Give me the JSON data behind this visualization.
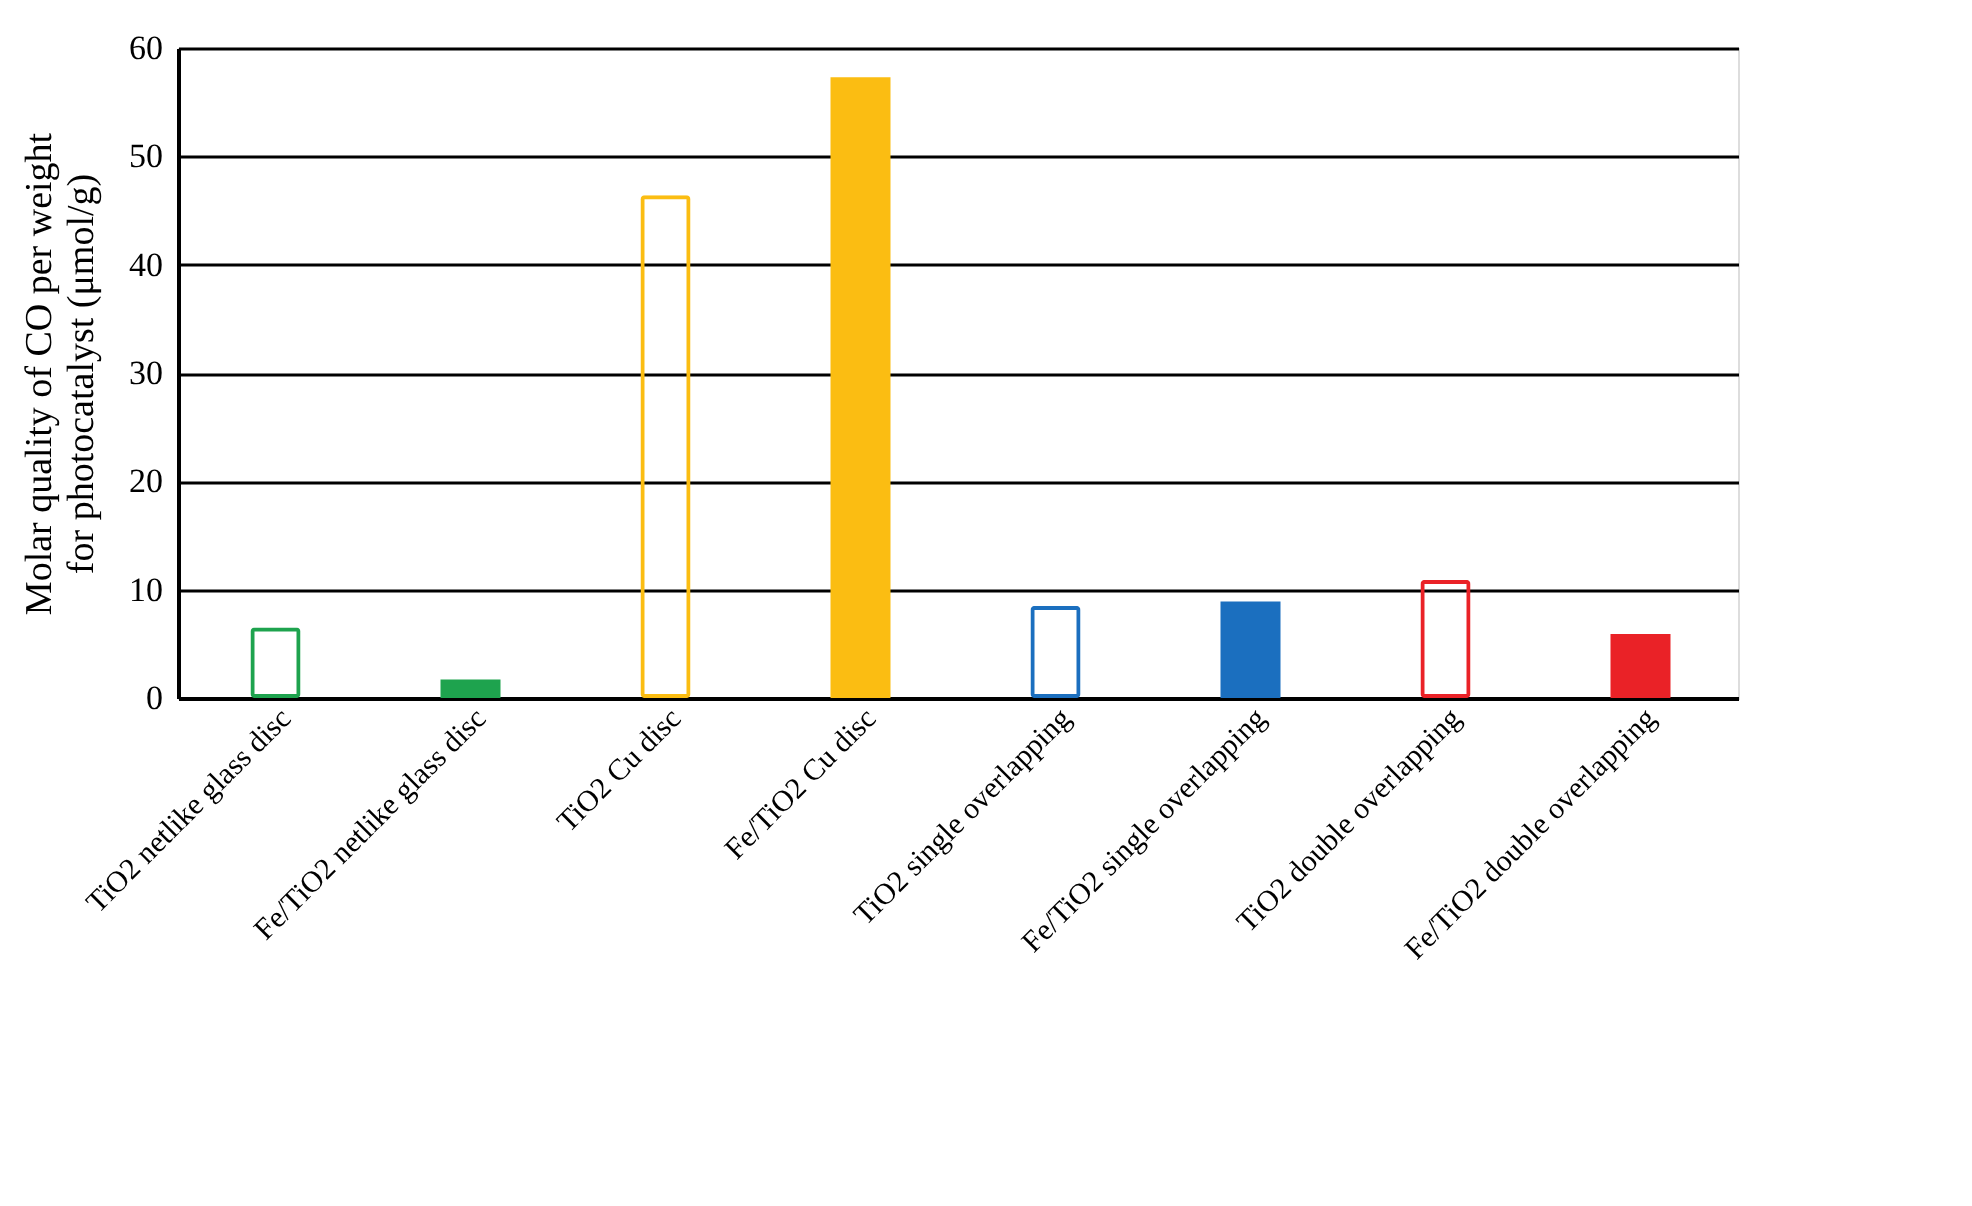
{
  "chart_data": {
    "type": "bar",
    "ylabel": "Molar quality of CO per weight\nfor photocatalyst  (μmol/g)",
    "categories": [
      "TiO2  netlike glass disc",
      "Fe/TiO2 netlike glass disc",
      "TiO2 Cu disc",
      "Fe/TiO2 Cu disc",
      "TiO2 single overlapping",
      "Fe/TiO2 single overlapping",
      "TiO2 double overlapping",
      "Fe/TiO2 double overlapping"
    ],
    "series": [
      {
        "colors": [
          "#1ea34e",
          null,
          "#fbbd12",
          null,
          "#1b6fbf",
          null,
          "#ea2227",
          null
        ],
        "values": [
          6.5,
          null,
          46.4,
          null,
          8.5,
          null,
          10.9,
          null
        ]
      },
      {
        "colors": [
          null,
          "#1ea34e",
          null,
          "#fbbd12",
          null,
          "#1b6fbf",
          null,
          "#ea2227"
        ],
        "values": [
          null,
          1.7,
          null,
          57.3,
          null,
          8.9,
          null,
          5.9
        ]
      }
    ],
    "ylim": [
      0,
      60
    ],
    "yticks": [
      0,
      10,
      20,
      30,
      40,
      50,
      60
    ],
    "grid": "y"
  }
}
